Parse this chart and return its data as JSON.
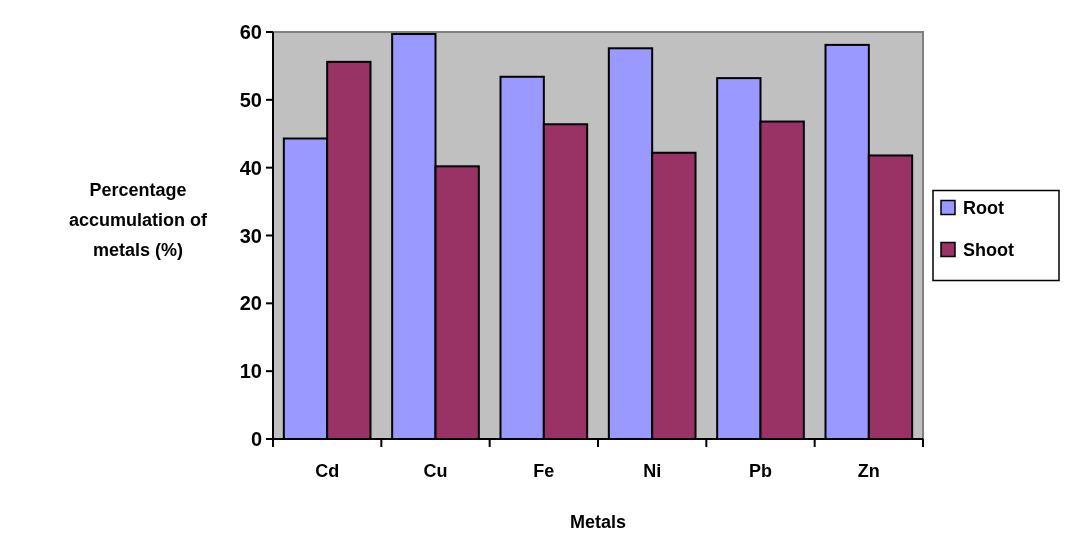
{
  "chart_data": {
    "type": "bar",
    "xlabel": "Metals",
    "ylabel": "Percentage accumulation of metals (%)",
    "categories": [
      "Cd",
      "Cu",
      "Fe",
      "Ni",
      "Pb",
      "Zn"
    ],
    "series": [
      {
        "name": "Root",
        "color": "#9999ff",
        "values": [
          44.3,
          59.7,
          53.4,
          57.6,
          53.2,
          58.1
        ]
      },
      {
        "name": "Shoot",
        "color": "#993366",
        "values": [
          55.6,
          40.2,
          46.4,
          42.2,
          46.8,
          41.8
        ]
      }
    ],
    "ylim": [
      0,
      60
    ],
    "yticks": [
      0,
      10,
      20,
      30,
      40,
      50,
      60
    ],
    "grid": false,
    "legend": "right"
  }
}
